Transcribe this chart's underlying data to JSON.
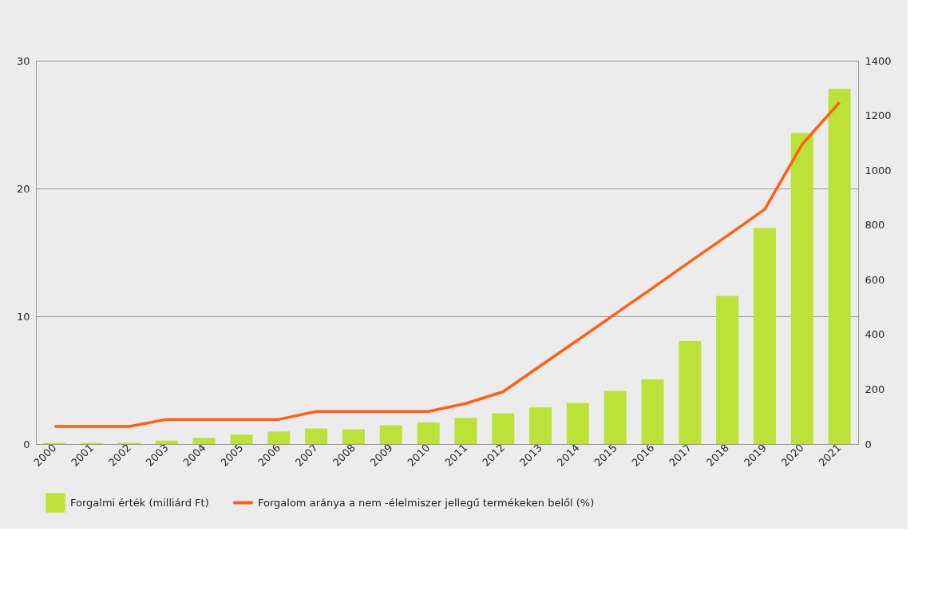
{
  "chart_data": {
    "type": "bar",
    "categories": [
      "2000",
      "2001",
      "2002",
      "2003",
      "2004",
      "2005",
      "2006",
      "2007",
      "2008",
      "2009",
      "2010",
      "2011",
      "2012",
      "2013",
      "2014",
      "2015",
      "2016",
      "2017",
      "2018",
      "2019",
      "2020",
      "2021"
    ],
    "series": [
      {
        "name": "Forgalmi érték (milliárd Ft)",
        "type": "bar",
        "color": "#bce23a",
        "values": [
          0.1,
          0.1,
          0.1,
          0.27,
          0.49,
          0.74,
          0.98,
          1.22,
          1.15,
          1.47,
          1.69,
          2.04,
          2.41,
          2.88,
          3.22,
          4.15,
          5.07,
          8.07,
          11.6,
          16.9,
          24.35,
          27.8
        ]
      },
      {
        "name": "Forgalom aránya a nem -élelmiszer jellegű termékeken belől (%)",
        "type": "line",
        "axis": "y2",
        "color": "#ff5f0f",
        "values": [
          64,
          64,
          64,
          90,
          90,
          90,
          90,
          119,
          119,
          119,
          119,
          148,
          191,
          286,
          380,
          475,
          570,
          666,
          761,
          857,
          1094,
          1248
        ]
      }
    ],
    "ylim": [
      0,
      30
    ],
    "yticks": [
      0,
      10,
      20,
      30
    ],
    "y2lim": [
      0,
      1400
    ],
    "y2ticks": [
      0,
      200,
      400,
      600,
      800,
      1000,
      1200,
      1400
    ],
    "grid": "y",
    "legend": "bottom"
  }
}
